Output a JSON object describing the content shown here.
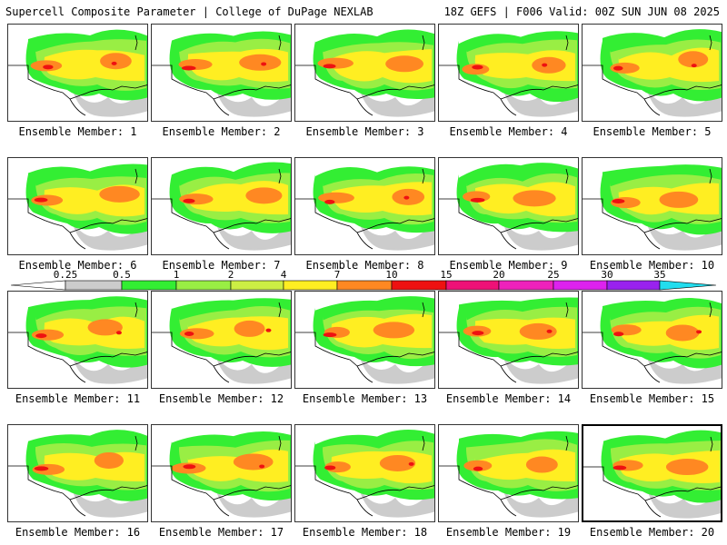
{
  "header": {
    "title": "Supercell Composite Parameter | College of DuPage NEXLAB",
    "run_info": "18Z GEFS | F006 Valid: 00Z SUN JUN 08 2025"
  },
  "colorbar": {
    "labels": [
      "0.25",
      "0.5",
      "1",
      "2",
      "4",
      "7",
      "10",
      "15",
      "20",
      "25",
      "30",
      "35"
    ],
    "colors": [
      "#cccccc",
      "#33ee33",
      "#99ee44",
      "#ccee44",
      "#ffee22",
      "#ff8822",
      "#ee1111",
      "#ee1177",
      "#ee22bb",
      "#dd22ee",
      "#9922ee",
      "#bb66ee",
      "#22ddee"
    ]
  },
  "members": [
    {
      "label": "Ensemble Member: 1"
    },
    {
      "label": "Ensemble Member: 2"
    },
    {
      "label": "Ensemble Member: 3"
    },
    {
      "label": "Ensemble Member: 4"
    },
    {
      "label": "Ensemble Member: 5"
    },
    {
      "label": "Ensemble Member: 6"
    },
    {
      "label": "Ensemble Member: 7"
    },
    {
      "label": "Ensemble Member: 8"
    },
    {
      "label": "Ensemble Member: 9"
    },
    {
      "label": "Ensemble Member: 10"
    },
    {
      "label": "Ensemble Member: 11"
    },
    {
      "label": "Ensemble Member: 12"
    },
    {
      "label": "Ensemble Member: 13"
    },
    {
      "label": "Ensemble Member: 14"
    },
    {
      "label": "Ensemble Member: 15"
    },
    {
      "label": "Ensemble Member: 16"
    },
    {
      "label": "Ensemble Member: 17"
    },
    {
      "label": "Ensemble Member: 18"
    },
    {
      "label": "Ensemble Member: 19"
    },
    {
      "label": "Ensemble Member: 20",
      "selected": true
    }
  ]
}
